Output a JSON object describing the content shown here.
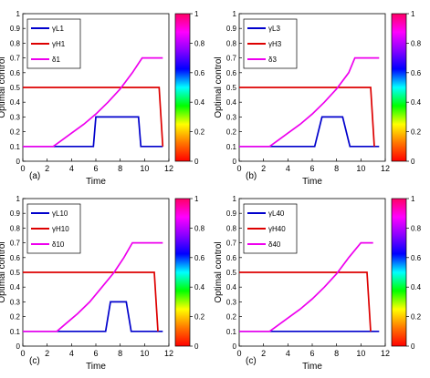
{
  "colors": {
    "gamma_L": "#0000cc",
    "gamma_H": "#dd0000",
    "delta": "#ee00ee",
    "colorbar_stops": [
      "#ff0000",
      "#ff7700",
      "#ffff00",
      "#00ff00",
      "#00ffff",
      "#0000ff",
      "#8800ff",
      "#ff00ff",
      "#ff0066"
    ]
  },
  "shared": {
    "ylabel": "Optimal control",
    "xlabel": "Time",
    "xticks": [
      "0",
      "2",
      "4",
      "6",
      "8",
      "10",
      "12"
    ],
    "yticks": [
      "0",
      "0.1",
      "0.2",
      "0.3",
      "0.4",
      "0.5",
      "0.6",
      "0.7",
      "0.8",
      "0.9",
      "1"
    ],
    "colorbar_ticks": [
      "0",
      "0.2",
      "0.4",
      "0.6",
      "0.8",
      "1"
    ]
  },
  "chart_data": [
    {
      "type": "line",
      "panel_label": "(a)",
      "xlim": [
        0,
        12
      ],
      "ylim": [
        0,
        1
      ],
      "legend_position": "top-left",
      "legend": [
        "γL1",
        "γH1",
        "δ1"
      ],
      "series": [
        {
          "name": "γL1",
          "color": "gamma_L",
          "x": [
            0,
            5.8,
            6.0,
            9.5,
            9.7,
            11.5
          ],
          "y": [
            0.1,
            0.1,
            0.3,
            0.3,
            0.1,
            0.1
          ]
        },
        {
          "name": "γH1",
          "color": "gamma_H",
          "x": [
            0,
            11.2,
            11.5
          ],
          "y": [
            0.5,
            0.5,
            0.1
          ]
        },
        {
          "name": "δ1",
          "color": "delta",
          "x": [
            0,
            2.5,
            3,
            4,
            5,
            6,
            7,
            8,
            9,
            9.8,
            11.5
          ],
          "y": [
            0.1,
            0.1,
            0.13,
            0.19,
            0.25,
            0.32,
            0.4,
            0.49,
            0.6,
            0.7,
            0.7
          ]
        }
      ]
    },
    {
      "type": "line",
      "panel_label": "(b)",
      "xlim": [
        0,
        12
      ],
      "ylim": [
        0,
        1
      ],
      "legend_position": "top-left",
      "legend": [
        "γL3",
        "γH3",
        "δ3"
      ],
      "series": [
        {
          "name": "γL3",
          "color": "gamma_L",
          "x": [
            0,
            6.2,
            6.8,
            8.5,
            9.1,
            11.5
          ],
          "y": [
            0.1,
            0.1,
            0.3,
            0.3,
            0.1,
            0.1
          ]
        },
        {
          "name": "γH3",
          "color": "gamma_H",
          "x": [
            0,
            10.8,
            11.1
          ],
          "y": [
            0.5,
            0.5,
            0.1
          ]
        },
        {
          "name": "δ3",
          "color": "delta",
          "x": [
            0,
            2.5,
            3,
            4,
            5,
            6,
            7,
            8,
            9,
            9.5,
            11.5
          ],
          "y": [
            0.1,
            0.1,
            0.13,
            0.19,
            0.25,
            0.32,
            0.4,
            0.49,
            0.6,
            0.7,
            0.7
          ]
        }
      ]
    },
    {
      "type": "line",
      "panel_label": "(c)",
      "xlim": [
        0,
        12
      ],
      "ylim": [
        0,
        1
      ],
      "legend_position": "top-left",
      "legend": [
        "γL10",
        "γH10",
        "δ10"
      ],
      "series": [
        {
          "name": "γL10",
          "color": "gamma_L",
          "x": [
            0,
            6.8,
            7.2,
            8.5,
            8.9,
            11.5
          ],
          "y": [
            0.1,
            0.1,
            0.3,
            0.3,
            0.1,
            0.1
          ]
        },
        {
          "name": "γH10",
          "color": "gamma_H",
          "x": [
            0,
            10.8,
            11.1
          ],
          "y": [
            0.5,
            0.5,
            0.1
          ]
        },
        {
          "name": "δ10",
          "color": "delta",
          "x": [
            0,
            2.8,
            3.5,
            4.5,
            5.5,
            6.5,
            7.5,
            8.3,
            9,
            11.5
          ],
          "y": [
            0.1,
            0.1,
            0.15,
            0.22,
            0.3,
            0.4,
            0.5,
            0.6,
            0.7,
            0.7
          ]
        }
      ]
    },
    {
      "type": "line",
      "panel_label": "(c)",
      "xlim": [
        0,
        12
      ],
      "ylim": [
        0,
        1
      ],
      "legend_position": "top-left",
      "legend": [
        "γL40",
        "γH40",
        "δ40"
      ],
      "series": [
        {
          "name": "γL40",
          "color": "gamma_L",
          "x": [
            0,
            11.5
          ],
          "y": [
            0.1,
            0.1
          ]
        },
        {
          "name": "γH40",
          "color": "gamma_H",
          "x": [
            0,
            10.5,
            10.8
          ],
          "y": [
            0.5,
            0.5,
            0.1
          ]
        },
        {
          "name": "δ40",
          "color": "delta",
          "x": [
            0,
            2.5,
            3,
            4,
            5,
            6,
            7,
            8,
            9,
            10,
            11
          ],
          "y": [
            0.1,
            0.1,
            0.13,
            0.19,
            0.25,
            0.32,
            0.4,
            0.49,
            0.6,
            0.7,
            0.7
          ]
        }
      ]
    }
  ]
}
